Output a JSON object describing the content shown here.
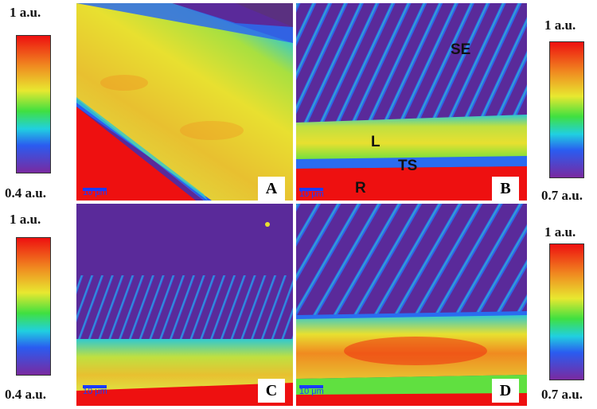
{
  "colorbars": {
    "top_left": {
      "max": "1 a.u.",
      "min": "0.4 a.u."
    },
    "top_right": {
      "max": "1 a.u.",
      "min": "0.7 a.u."
    },
    "bottom_left": {
      "max": "1 a.u.",
      "min": "0.4 a.u."
    },
    "bottom_right": {
      "max": "1 a.u.",
      "min": "0.7 a.u."
    }
  },
  "panels": {
    "A": {
      "letter": "A",
      "scale": "10 μm"
    },
    "B": {
      "letter": "B",
      "scale": "10 μm",
      "labels": {
        "se": "SE",
        "l": "L",
        "ts": "TS",
        "r": "R"
      }
    },
    "C": {
      "letter": "C",
      "scale": "10 μm"
    },
    "D": {
      "letter": "D",
      "scale": "10 μm"
    }
  },
  "colors": {
    "map_low": "#5a2a9a",
    "map_blue": "#2a6cf0",
    "map_cyan": "#20d0e0",
    "map_green": "#50e040",
    "map_yellow": "#e8e830",
    "map_orange": "#f09020",
    "map_red": "#ee1010",
    "scale_bar": "#1a3cff"
  }
}
